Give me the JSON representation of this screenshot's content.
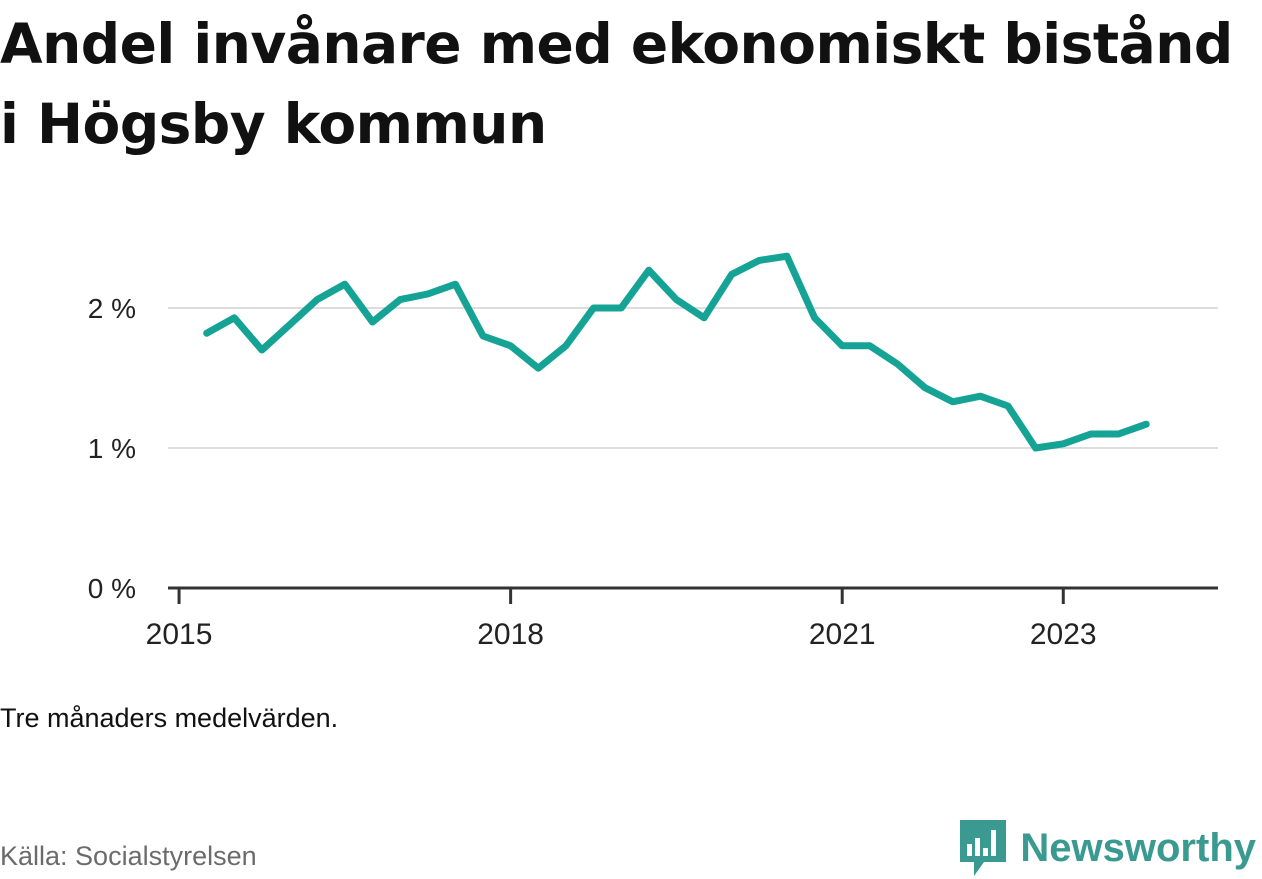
{
  "title": "Andel invånare med ekonomiskt bistånd i Högsby kommun",
  "note": "Tre månaders medelvärden.",
  "source": "Källa: Socialstyrelsen",
  "brand": "Newsworthy",
  "colors": {
    "line": "#15a396",
    "grid": "#dddddd",
    "axis": "#333333",
    "brand": "#3a9a91"
  },
  "chart_data": {
    "type": "line",
    "title": "Andel invånare med ekonomiskt bistånd i Högsby kommun",
    "xlabel": "",
    "ylabel": "",
    "xlim": [
      2014.9,
      2024.4
    ],
    "ylim": [
      0,
      2.5
    ],
    "yticks": [
      0,
      1,
      2
    ],
    "ytick_labels": [
      "0 %",
      "1 %",
      "2 %"
    ],
    "xticks": [
      2015,
      2018,
      2021,
      2023
    ],
    "xtick_labels": [
      "2015",
      "2018",
      "2021",
      "2023"
    ],
    "grid": true,
    "series": [
      {
        "x": [
          2015.25,
          2015.5,
          2015.75,
          2016.0,
          2016.25,
          2016.5,
          2016.75,
          2017.0,
          2017.25,
          2017.5,
          2017.75,
          2018.0,
          2018.25,
          2018.5,
          2018.75,
          2019.0,
          2019.25,
          2019.5,
          2019.75,
          2020.0,
          2020.25,
          2020.5,
          2020.75,
          2021.0,
          2021.25,
          2021.5,
          2021.75,
          2022.0,
          2022.25,
          2022.5,
          2022.75,
          2023.0,
          2023.25,
          2023.5,
          2023.75
        ],
        "values": [
          1.82,
          1.93,
          1.7,
          1.88,
          2.06,
          2.17,
          1.9,
          2.06,
          2.1,
          2.17,
          1.8,
          1.73,
          1.57,
          1.73,
          2.0,
          2.0,
          2.27,
          2.06,
          1.93,
          2.24,
          2.34,
          2.37,
          1.93,
          1.73,
          1.73,
          1.6,
          1.43,
          1.33,
          1.37,
          1.3,
          1.0,
          1.03,
          1.1,
          1.1,
          1.17
        ]
      }
    ]
  }
}
